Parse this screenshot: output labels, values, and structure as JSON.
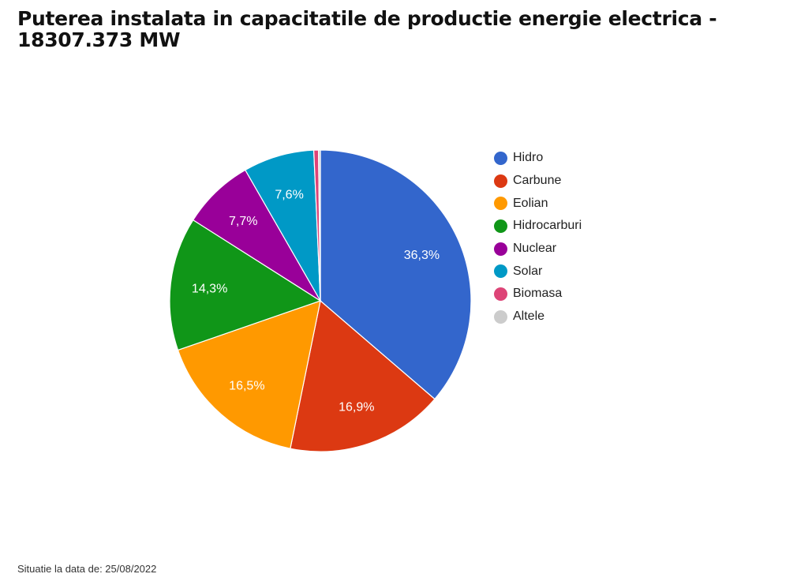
{
  "chart_data": {
    "type": "pie",
    "title": "Puterea instalata in capacitatile de productie energie electrica - 18307.373 MW",
    "categories": [
      "Hidro",
      "Carbune",
      "Eolian",
      "Hidrocarburi",
      "Nuclear",
      "Solar",
      "Biomasa",
      "Altele"
    ],
    "values": [
      36.3,
      16.9,
      16.5,
      14.3,
      7.7,
      7.6,
      0.5,
      0.2
    ],
    "labels": [
      "36,3%",
      "16,9%",
      "16,5%",
      "14,3%",
      "7,7%",
      "7,6%",
      "",
      ""
    ],
    "colors": [
      "#3366cc",
      "#dc3912",
      "#ff9900",
      "#109618",
      "#990099",
      "#0099c6",
      "#dd4477",
      "#cccccc"
    ],
    "legend_position": "right"
  },
  "footer": "Situatie la data de: 25/08/2022"
}
